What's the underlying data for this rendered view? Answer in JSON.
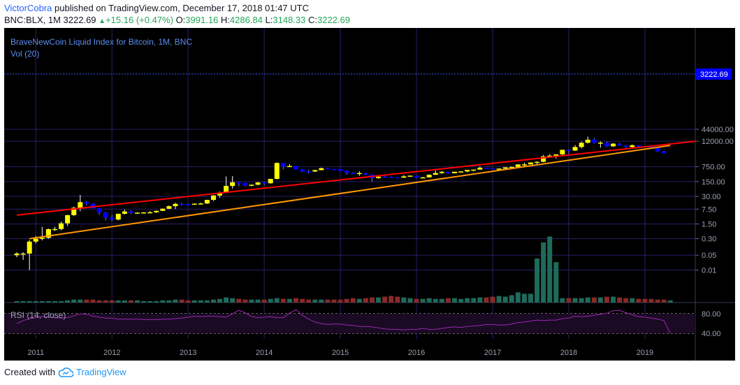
{
  "header": {
    "user": "VictorCobra",
    "published_text": " published on TradingView.com, December 17, 2018 01:47 UTC",
    "symbol": "BNC:BLX, 1M",
    "last": "3222.69",
    "change": "+15.16 (+0.47%)",
    "o_label": "O:",
    "o_value": "3991.16",
    "h_label": "H:",
    "h_value": "4286.84",
    "l_label": "L:",
    "l_value": "3148.33",
    "c_label": "C:",
    "c_value": "3222.69"
  },
  "footer": {
    "created_with": "Created with",
    "brand": "TradingView"
  },
  "colors": {
    "background": "#000000",
    "up": "#ffff00",
    "down": "#0000ff",
    "grid": "#2a1f66",
    "trend_red": "#ff0000",
    "trend_orange": "#ff9800",
    "rsi": "#9c27b0"
  },
  "chart_data": {
    "type": "candlestick",
    "title": "BraveNewCoin Liquid Index for Bitcoin, 1M, BNC",
    "volume_label": "Vol (20)",
    "rsi_label": "RSI (14, close)",
    "price_axis_ticks": [
      "44000.00",
      "12000.00",
      "750.00",
      "150.00",
      "30.00",
      "7.50",
      "1.50",
      "0.30",
      "0.05",
      "0.01"
    ],
    "rsi_axis_ticks": [
      "80.00",
      "40.00"
    ],
    "x_ticks": [
      "2011",
      "2012",
      "2013",
      "2014",
      "2015",
      "2016",
      "2017",
      "2018",
      "2019"
    ],
    "last_price_label": "3222.69",
    "scale": "log",
    "months": 104,
    "candles": [
      {
        "o": 0.05,
        "h": 0.07,
        "l": 0.04,
        "c": 0.06
      },
      {
        "o": 0.06,
        "h": 0.07,
        "l": 0.03,
        "c": 0.06
      },
      {
        "o": 0.06,
        "h": 0.26,
        "l": 0.01,
        "c": 0.22
      },
      {
        "o": 0.22,
        "h": 0.4,
        "l": 0.18,
        "c": 0.3
      },
      {
        "o": 0.3,
        "h": 1.1,
        "l": 0.25,
        "c": 0.33
      },
      {
        "o": 0.33,
        "h": 0.9,
        "l": 0.3,
        "c": 0.85
      },
      {
        "o": 0.85,
        "h": 1.1,
        "l": 0.7,
        "c": 0.86
      },
      {
        "o": 0.86,
        "h": 1.95,
        "l": 0.75,
        "c": 1.6
      },
      {
        "o": 1.6,
        "h": 4,
        "l": 1.2,
        "c": 3.9
      },
      {
        "o": 3.9,
        "h": 9.8,
        "l": 3.5,
        "c": 8.7
      },
      {
        "o": 8.7,
        "h": 35,
        "l": 6,
        "c": 16
      },
      {
        "o": 16,
        "h": 18,
        "l": 11,
        "c": 13.5
      },
      {
        "o": 13.5,
        "h": 14,
        "l": 8,
        "c": 8.2
      },
      {
        "o": 8.2,
        "h": 8.5,
        "l": 4,
        "c": 5.2
      },
      {
        "o": 5.2,
        "h": 5.5,
        "l": 2.2,
        "c": 3
      },
      {
        "o": 3,
        "h": 4,
        "l": 2,
        "c": 2.4
      },
      {
        "o": 2.4,
        "h": 4.6,
        "l": 2.2,
        "c": 4.5
      },
      {
        "o": 4.5,
        "h": 7.2,
        "l": 4.2,
        "c": 5.8
      },
      {
        "o": 5.8,
        "h": 6.5,
        "l": 4.4,
        "c": 4.9
      },
      {
        "o": 4.9,
        "h": 5.3,
        "l": 4.6,
        "c": 5.1
      },
      {
        "o": 5.1,
        "h": 5.4,
        "l": 4.8,
        "c": 5.2
      },
      {
        "o": 5.2,
        "h": 6.1,
        "l": 4.9,
        "c": 5.3
      },
      {
        "o": 5.3,
        "h": 6.5,
        "l": 5,
        "c": 6.2
      },
      {
        "o": 6.2,
        "h": 8.2,
        "l": 6,
        "c": 7.8
      },
      {
        "o": 7.8,
        "h": 11,
        "l": 7.5,
        "c": 10.3
      },
      {
        "o": 10.3,
        "h": 15,
        "l": 7.6,
        "c": 13.2
      },
      {
        "o": 13.2,
        "h": 15,
        "l": 11,
        "c": 12.6
      },
      {
        "o": 12.6,
        "h": 13.5,
        "l": 11.8,
        "c": 12.5
      },
      {
        "o": 12.5,
        "h": 14,
        "l": 12,
        "c": 13.5
      },
      {
        "o": 13.5,
        "h": 15.2,
        "l": 12.8,
        "c": 13.8
      },
      {
        "o": 13.8,
        "h": 20,
        "l": 13,
        "c": 20.5
      },
      {
        "o": 20.5,
        "h": 34,
        "l": 18,
        "c": 33
      },
      {
        "o": 33,
        "h": 50,
        "l": 26,
        "c": 46
      },
      {
        "o": 46,
        "h": 260,
        "l": 45,
        "c": 93
      },
      {
        "o": 93,
        "h": 270,
        "l": 70,
        "c": 139
      },
      {
        "o": 139,
        "h": 140,
        "l": 90,
        "c": 129
      },
      {
        "o": 129,
        "h": 130,
        "l": 88,
        "c": 97
      },
      {
        "o": 97,
        "h": 109,
        "l": 89,
        "c": 106
      },
      {
        "o": 106,
        "h": 144,
        "l": 100,
        "c": 136
      },
      {
        "o": 136,
        "h": 139,
        "l": 100,
        "c": 125
      },
      {
        "o": 125,
        "h": 200,
        "l": 118,
        "c": 200
      },
      {
        "o": 200,
        "h": 1200,
        "l": 190,
        "c": 1130
      },
      {
        "o": 1130,
        "h": 1160,
        "l": 570,
        "c": 760
      },
      {
        "o": 760,
        "h": 1000,
        "l": 720,
        "c": 810
      },
      {
        "o": 810,
        "h": 820,
        "l": 580,
        "c": 560
      },
      {
        "o": 560,
        "h": 590,
        "l": 410,
        "c": 450
      },
      {
        "o": 450,
        "h": 550,
        "l": 350,
        "c": 448
      },
      {
        "o": 448,
        "h": 540,
        "l": 420,
        "c": 520
      },
      {
        "o": 520,
        "h": 680,
        "l": 510,
        "c": 640
      },
      {
        "o": 640,
        "h": 660,
        "l": 570,
        "c": 588
      },
      {
        "o": 588,
        "h": 600,
        "l": 530,
        "c": 581
      },
      {
        "o": 581,
        "h": 590,
        "l": 450,
        "c": 478
      },
      {
        "o": 478,
        "h": 500,
        "l": 320,
        "c": 388
      },
      {
        "o": 388,
        "h": 420,
        "l": 340,
        "c": 338
      },
      {
        "o": 338,
        "h": 460,
        "l": 280,
        "c": 378
      },
      {
        "o": 378,
        "h": 400,
        "l": 300,
        "c": 315
      },
      {
        "o": 315,
        "h": 330,
        "l": 150,
        "c": 218
      },
      {
        "o": 218,
        "h": 265,
        "l": 207,
        "c": 254
      },
      {
        "o": 254,
        "h": 300,
        "l": 245,
        "c": 245
      },
      {
        "o": 245,
        "h": 262,
        "l": 230,
        "c": 236
      },
      {
        "o": 236,
        "h": 240,
        "l": 225,
        "c": 229
      },
      {
        "o": 229,
        "h": 300,
        "l": 228,
        "c": 263
      },
      {
        "o": 263,
        "h": 285,
        "l": 250,
        "c": 284
      },
      {
        "o": 284,
        "h": 290,
        "l": 220,
        "c": 230
      },
      {
        "o": 230,
        "h": 250,
        "l": 225,
        "c": 236
      },
      {
        "o": 236,
        "h": 330,
        "l": 235,
        "c": 312
      },
      {
        "o": 312,
        "h": 500,
        "l": 310,
        "c": 378
      },
      {
        "o": 378,
        "h": 470,
        "l": 350,
        "c": 432
      },
      {
        "o": 432,
        "h": 435,
        "l": 350,
        "c": 369
      },
      {
        "o": 369,
        "h": 440,
        "l": 365,
        "c": 435
      },
      {
        "o": 435,
        "h": 460,
        "l": 400,
        "c": 448
      },
      {
        "o": 448,
        "h": 455,
        "l": 415,
        "c": 530
      },
      {
        "o": 530,
        "h": 550,
        "l": 450,
        "c": 550
      },
      {
        "o": 550,
        "h": 780,
        "l": 540,
        "c": 673
      },
      {
        "o": 673,
        "h": 680,
        "l": 600,
        "c": 626
      },
      {
        "o": 626,
        "h": 660,
        "l": 600,
        "c": 606
      },
      {
        "o": 606,
        "h": 630,
        "l": 570,
        "c": 613
      },
      {
        "o": 613,
        "h": 720,
        "l": 610,
        "c": 702
      },
      {
        "o": 702,
        "h": 745,
        "l": 690,
        "c": 740
      },
      {
        "o": 740,
        "h": 980,
        "l": 730,
        "c": 960
      },
      {
        "o": 960,
        "h": 1160,
        "l": 750,
        "c": 968
      },
      {
        "o": 968,
        "h": 1200,
        "l": 950,
        "c": 1190
      },
      {
        "o": 1190,
        "h": 1350,
        "l": 1000,
        "c": 1280
      },
      {
        "o": 1280,
        "h": 2700,
        "l": 1220,
        "c": 2300
      },
      {
        "o": 2300,
        "h": 2950,
        "l": 2200,
        "c": 2500
      },
      {
        "o": 2500,
        "h": 2800,
        "l": 1850,
        "c": 2880
      },
      {
        "o": 2880,
        "h": 4800,
        "l": 2650,
        "c": 4700
      },
      {
        "o": 4700,
        "h": 5000,
        "l": 2970,
        "c": 4350
      },
      {
        "o": 4350,
        "h": 7900,
        "l": 4200,
        "c": 6400
      },
      {
        "o": 6400,
        "h": 11400,
        "l": 5500,
        "c": 10100
      },
      {
        "o": 10100,
        "h": 19800,
        "l": 9500,
        "c": 14100
      },
      {
        "o": 14100,
        "h": 17200,
        "l": 9400,
        "c": 10100
      },
      {
        "o": 10100,
        "h": 11800,
        "l": 6000,
        "c": 10300
      },
      {
        "o": 10300,
        "h": 11700,
        "l": 6500,
        "c": 6900
      },
      {
        "o": 6900,
        "h": 9800,
        "l": 6500,
        "c": 9200
      },
      {
        "o": 9200,
        "h": 10000,
        "l": 7200,
        "c": 7500
      },
      {
        "o": 7500,
        "h": 7800,
        "l": 5800,
        "c": 6400
      },
      {
        "o": 6400,
        "h": 8500,
        "l": 5800,
        "c": 7700
      },
      {
        "o": 7700,
        "h": 7800,
        "l": 5900,
        "c": 7000
      },
      {
        "o": 7000,
        "h": 7400,
        "l": 6100,
        "c": 6600
      },
      {
        "o": 6600,
        "h": 7100,
        "l": 6100,
        "c": 6300
      },
      {
        "o": 6300,
        "h": 6500,
        "l": 3700,
        "c": 4000
      },
      {
        "o": 4000,
        "h": 4290,
        "l": 3150,
        "c": 3223
      }
    ],
    "volume": [
      2,
      2,
      2,
      2,
      2,
      2,
      2,
      2,
      3,
      4,
      4,
      4,
      4,
      3,
      3,
      3,
      3,
      3,
      3,
      3,
      2,
      2,
      2,
      3,
      3,
      4,
      4,
      3,
      3,
      3,
      3,
      4,
      5,
      7,
      6,
      5,
      4,
      4,
      4,
      4,
      5,
      6,
      5,
      5,
      6,
      5,
      4,
      4,
      4,
      4,
      4,
      4,
      5,
      6,
      5,
      6,
      7,
      7,
      8,
      9,
      8,
      7,
      6,
      5,
      5,
      6,
      5,
      5,
      6,
      6,
      5,
      6,
      6,
      7,
      7,
      8,
      9,
      8,
      10,
      14,
      12,
      12,
      60,
      82,
      90,
      55,
      6,
      6,
      6,
      6,
      7,
      7,
      7,
      8,
      8,
      7,
      6,
      6,
      5,
      5,
      5,
      4,
      4,
      3
    ],
    "rsi": [
      60,
      66,
      70,
      72,
      74,
      73,
      72,
      71,
      72,
      76,
      80,
      79,
      75,
      73,
      71,
      71,
      69,
      69,
      69,
      69,
      68,
      68,
      68,
      69,
      69,
      70,
      71,
      73,
      75,
      74,
      75,
      75,
      74,
      73,
      80,
      87,
      82,
      74,
      72,
      73,
      74,
      72,
      72,
      81,
      88,
      77,
      69,
      63,
      60,
      58,
      59,
      59,
      57,
      56,
      54,
      54,
      53,
      51,
      49,
      48,
      48,
      47,
      48,
      48,
      50,
      48,
      48,
      50,
      52,
      53,
      52,
      54,
      55,
      56,
      58,
      58,
      57,
      57,
      59,
      62,
      63,
      65,
      67,
      66,
      67,
      67,
      70,
      71,
      75,
      74,
      75,
      77,
      79,
      81,
      86,
      87,
      82,
      78,
      74,
      73,
      71,
      69,
      66,
      40
    ],
    "trendlines": [
      {
        "name": "red",
        "from_month": 0,
        "from_price": 3.9,
        "to_month": 107,
        "to_price": 12000
      },
      {
        "name": "orange",
        "from_month": 2,
        "from_price": 0.3,
        "to_month": 103,
        "to_price": 7600
      }
    ]
  }
}
